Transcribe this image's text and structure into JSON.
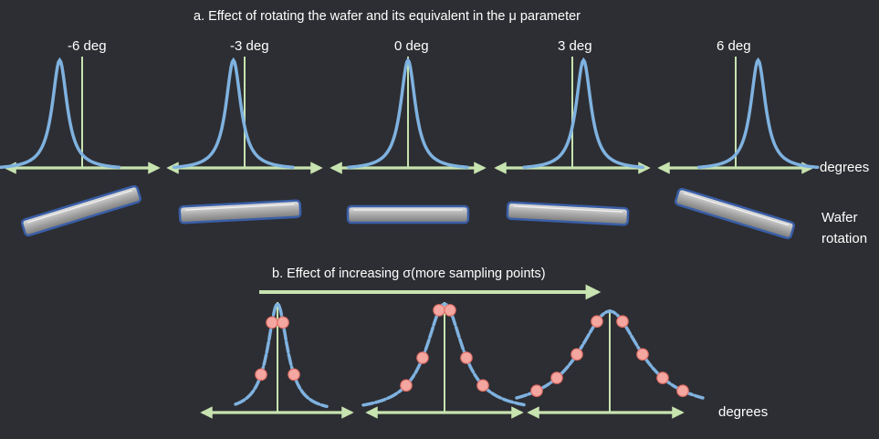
{
  "section_a": {
    "title": "a. Effect of rotating the wafer and its equivalent in the μ parameter",
    "angles": [
      {
        "label": "-6 deg",
        "rotation": -6
      },
      {
        "label": "-3 deg",
        "rotation": -3
      },
      {
        "label": "0 deg",
        "rotation": 0
      },
      {
        "label": "3 deg",
        "rotation": 3
      },
      {
        "label": "6 deg",
        "rotation": 6
      }
    ],
    "axis_label": "degrees",
    "wafer_label_line1": "Wafer",
    "wafer_label_line2": "rotation"
  },
  "section_b": {
    "title": "b. Effect of increasing σ(more sampling points)",
    "axis_label": "degrees",
    "curves": [
      {
        "sigma_level": 1,
        "sample_points": 4
      },
      {
        "sigma_level": 2,
        "sample_points": 6
      },
      {
        "sigma_level": 3,
        "sample_points": 8
      }
    ]
  },
  "colors": {
    "background": "#2d2e33",
    "curve": "#7fb2e0",
    "axis": "#c7e3b0",
    "sample_point": "#f4a7a0",
    "wafer_edge": "#3a5fa8",
    "wafer_fill": "#a9a9a9",
    "text": "#ffffff"
  }
}
